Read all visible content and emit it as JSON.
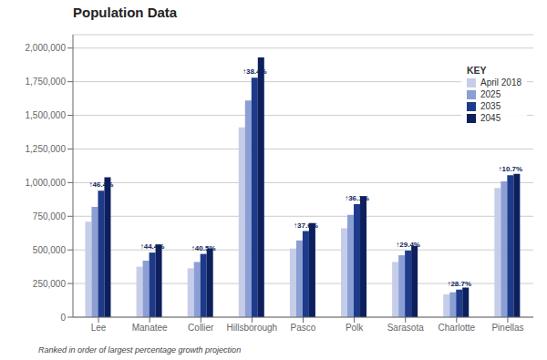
{
  "chart_data": {
    "type": "bar",
    "title": "Population Data",
    "subtitle": "Ranked in order of largest percentage growth projection",
    "categories": [
      "Lee",
      "Manatee",
      "Collier",
      "Hillsborough",
      "Pasco",
      "Polk",
      "Sarasota",
      "Charlotte",
      "Pinellas"
    ],
    "series": [
      {
        "name": "April 2018",
        "color": "#c5cde8",
        "values": [
          710000,
          375000,
          363000,
          1410000,
          510000,
          660000,
          410000,
          170000,
          960000
        ]
      },
      {
        "name": "2025",
        "color": "#8b9fd4",
        "values": [
          820000,
          420000,
          410000,
          1610000,
          570000,
          760000,
          460000,
          185000,
          1010000
        ]
      },
      {
        "name": "2035",
        "color": "#1e3a8a",
        "values": [
          940000,
          480000,
          470000,
          1780000,
          640000,
          840000,
          495000,
          205000,
          1055000
        ]
      },
      {
        "name": "2045",
        "color": "#0d1f5c",
        "values": [
          1040000,
          540000,
          510000,
          1930000,
          700000,
          900000,
          530000,
          220000,
          1065000
        ]
      }
    ],
    "annotations": [
      {
        "category": "Lee",
        "series": "2035",
        "text": "↑46.4%",
        "color": "#0d1f5c"
      },
      {
        "category": "Manatee",
        "series": "2035",
        "text": "↑44.4%",
        "color": "#0d1f5c"
      },
      {
        "category": "Collier",
        "series": "2035",
        "text": "↑40.5%",
        "color": "#0d1f5c"
      },
      {
        "category": "Hillsborough",
        "series": "2035",
        "text": "↑38.4%",
        "color": "#0d1f5c"
      },
      {
        "category": "Pasco",
        "series": "2035",
        "text": "↑37.6%",
        "color": "#0d1f5c"
      },
      {
        "category": "Polk",
        "series": "2035",
        "text": "↑36.1%",
        "color": "#0d1f5c"
      },
      {
        "category": "Sarasota",
        "series": "2035",
        "text": "↑29.4%",
        "color": "#0d1f5c"
      },
      {
        "category": "Charlotte",
        "series": "2035",
        "text": "↑28.7%",
        "color": "#0d1f5c"
      },
      {
        "category": "Pinellas",
        "series": "2035",
        "text": "↑10.7%",
        "color": "#0d1f5c"
      }
    ],
    "legend_title": "KEY",
    "legend": "upper right",
    "ylim": [
      0,
      2100000
    ],
    "yticks": [
      0,
      {
        "value": 250000,
        "label": "250,000"
      },
      {
        "value": 500000,
        "label": "500,000"
      },
      {
        "value": 750000,
        "label": "750,000"
      },
      {
        "value": 1000000,
        "label": "1,000,000"
      },
      {
        "value": 1250000,
        "label": "1,250,000"
      },
      {
        "value": 1500000,
        "label": "1,500,000"
      },
      {
        "value": 1750000,
        "label": "1,750,000"
      },
      {
        "value": 2000000,
        "label": "2,000,000"
      }
    ],
    "grid": true
  }
}
